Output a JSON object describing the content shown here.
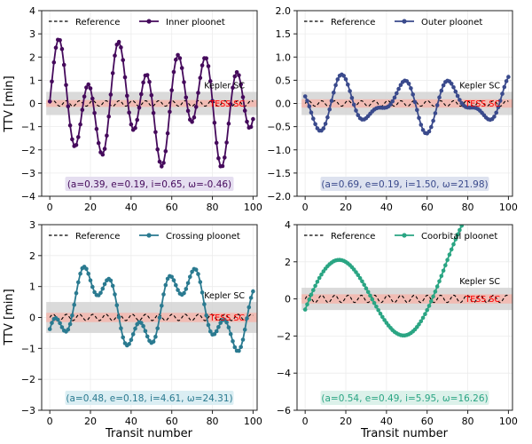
{
  "figure": {
    "ylabel": "TTV [min]",
    "xlabel": "Transit number",
    "reference_label": "Reference",
    "kepler_label": "Kepler SC",
    "tess_label": "TESS SC",
    "colors": {
      "reference": "#000000",
      "tess_band": "#f4b6ad",
      "kepler_band": "#d3d3d3",
      "tess_text": "#ff0000"
    }
  },
  "chart_data": [
    {
      "type": "line",
      "series_name": "Inner ploonet",
      "color": "#450a5c",
      "param_box_color": "#e5def0",
      "params": "(a=0.39, e=0.19, i=0.65, ω=-0.46)",
      "ylim": [
        -4,
        4
      ],
      "yticks": [
        -4,
        -3,
        -2,
        -1,
        0,
        1,
        2,
        3,
        4
      ],
      "ytick_labels": [
        "−4",
        "−3",
        "−2",
        "−1",
        "0",
        "1",
        "2",
        "3",
        "4"
      ],
      "xlim": [
        -4,
        102
      ],
      "xticks": [
        0,
        20,
        40,
        60,
        80,
        100
      ],
      "tess_band": 0.15,
      "kepler_band": 0.5,
      "ref_amp": 0.12,
      "components": [
        [
          1.8,
          14.5,
          -0.4
        ],
        [
          1.0,
          33,
          0.9
        ]
      ],
      "trend": [
        0,
        0
      ],
      "n_points": 100
    },
    {
      "type": "line",
      "series_name": "Outer ploonet",
      "color": "#3a4a8c",
      "param_box_color": "#dde2ef",
      "params": "(a=0.69, e=0.19, i=1.50, ω=21.98)",
      "ylim": [
        -2,
        2
      ],
      "yticks": [
        -2.0,
        -1.5,
        -1.0,
        -0.5,
        0.0,
        0.5,
        1.0,
        1.5,
        2.0
      ],
      "ytick_labels": [
        "−2.0",
        "−1.5",
        "−1.0",
        "−0.5",
        "0.0",
        "0.5",
        "1.0",
        "1.5",
        "2.0"
      ],
      "xlim": [
        -4,
        102
      ],
      "xticks": [
        0,
        20,
        40,
        60,
        80,
        100
      ],
      "tess_band": 0.09,
      "kepler_band": 0.25,
      "ref_amp": 0.06,
      "components": [
        [
          0.4,
          27,
          -2.9
        ],
        [
          0.25,
          17,
          1.5
        ]
      ],
      "trend": [
        0,
        0
      ],
      "n_points": 100
    },
    {
      "type": "line",
      "series_name": "Crossing ploonet",
      "color": "#2a7a90",
      "param_box_color": "#dbeef3",
      "params": "(a=0.48, e=0.18, i=4.61, ω=24.31)",
      "ylim": [
        -3,
        3
      ],
      "yticks": [
        -3,
        -2,
        -1,
        0,
        1,
        2,
        3
      ],
      "ytick_labels": [
        "−3",
        "−2",
        "−1",
        "0",
        "1",
        "2",
        "3"
      ],
      "xlim": [
        -4,
        102
      ],
      "xticks": [
        0,
        20,
        40,
        60,
        80,
        100
      ],
      "tess_band": 0.15,
      "kepler_band": 0.5,
      "ref_amp": 0.1,
      "components": [
        [
          1.0,
          45,
          -1.4
        ],
        [
          0.55,
          14,
          0.6
        ]
      ],
      "trend": [
        0.3,
        0
      ],
      "n_points": 100
    },
    {
      "type": "line",
      "series_name": "Coorbital ploonet",
      "color": "#2aa583",
      "param_box_color": "#dcf1ea",
      "params": "(a=0.54, e=0.49, i=5.95, ω=16.26)",
      "ylim": [
        -6,
        4
      ],
      "yticks": [
        -6,
        -4,
        -2,
        0,
        2,
        4
      ],
      "ytick_labels": [
        "−6",
        "−4",
        "−2",
        "0",
        "2",
        "4"
      ],
      "xlim": [
        -4,
        102
      ],
      "xticks": [
        0,
        20,
        40,
        60,
        80,
        100
      ],
      "tess_band": 0.25,
      "kepler_band": 0.6,
      "ref_amp": 0.2,
      "components": [
        [
          2.8,
          72,
          0.3
        ]
      ],
      "trend": [
        -1.4,
        0.045
      ],
      "n_points": 100
    }
  ]
}
